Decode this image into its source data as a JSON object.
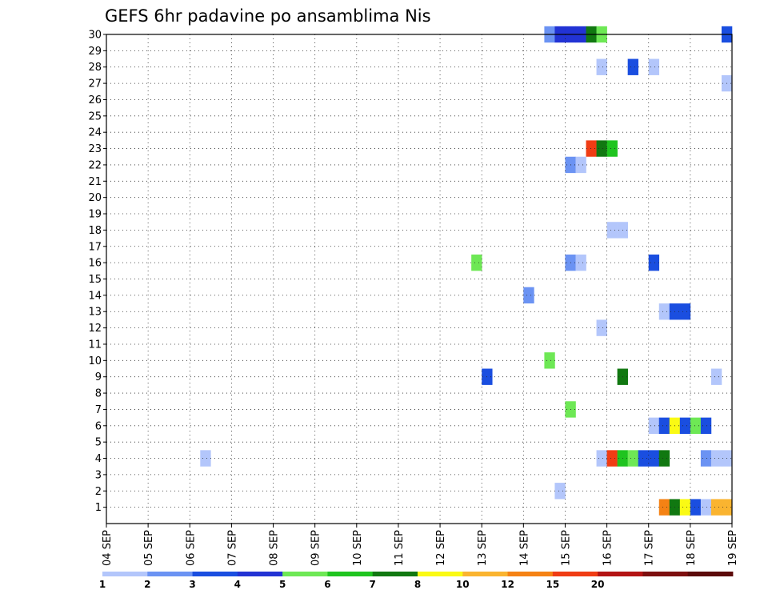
{
  "chart_data": {
    "type": "heatmap",
    "title": "GEFS 6hr padavine po ansamblima Nis",
    "xlabel": "",
    "ylabel": "",
    "x_tick_labels": [
      "04 SEP",
      "05 SEP",
      "06 SEP",
      "07 SEP",
      "08 SEP",
      "09 SEP",
      "10 SEP",
      "11 SEP",
      "12 SEP",
      "13 SEP",
      "14 SEP",
      "15 SEP",
      "16 SEP",
      "17 SEP",
      "18 SEP",
      "19 SEP"
    ],
    "x_unit": "6-hour step from 04 SEP 00Z",
    "xlim": [
      0,
      60
    ],
    "y_tick_labels": [
      "1",
      "2",
      "3",
      "4",
      "5",
      "6",
      "7",
      "8",
      "9",
      "10",
      "11",
      "12",
      "13",
      "14",
      "15",
      "16",
      "17",
      "18",
      "19",
      "20",
      "21",
      "22",
      "23",
      "24",
      "25",
      "26",
      "27",
      "28",
      "29",
      "30"
    ],
    "ylim": [
      0,
      30
    ],
    "grid": true,
    "colorbar": {
      "colors": [
        "#b3c6fb",
        "#6b93f3",
        "#1a4ee0",
        "#2233d4",
        "#6ee855",
        "#1fc41f",
        "#117811",
        "#fafa14",
        "#fab430",
        "#f58214",
        "#f03c14",
        "#b41414",
        "#7d0f0f",
        "#5c0a0a"
      ],
      "tick_labels": [
        "1",
        "2",
        "3",
        "4",
        "5",
        "6",
        "7",
        "8",
        "10",
        "12",
        "15",
        "20"
      ]
    },
    "cells": [
      {
        "x": 42,
        "y": 30,
        "c": 1
      },
      {
        "x": 43,
        "y": 30,
        "c": 3
      },
      {
        "x": 44,
        "y": 30,
        "c": 3
      },
      {
        "x": 45,
        "y": 30,
        "c": 3
      },
      {
        "x": 46,
        "y": 30,
        "c": 6
      },
      {
        "x": 47,
        "y": 30,
        "c": 4
      },
      {
        "x": 59,
        "y": 30,
        "c": 2
      },
      {
        "x": 47,
        "y": 28,
        "c": 0
      },
      {
        "x": 50,
        "y": 28,
        "c": 2
      },
      {
        "x": 52,
        "y": 28,
        "c": 0
      },
      {
        "x": 59,
        "y": 27,
        "c": 0
      },
      {
        "x": 46,
        "y": 23,
        "c": 10
      },
      {
        "x": 47,
        "y": 23,
        "c": 6
      },
      {
        "x": 48,
        "y": 23,
        "c": 5
      },
      {
        "x": 44,
        "y": 22,
        "c": 1
      },
      {
        "x": 45,
        "y": 22,
        "c": 0
      },
      {
        "x": 48,
        "y": 18,
        "c": 0
      },
      {
        "x": 49,
        "y": 18,
        "c": 0
      },
      {
        "x": 35,
        "y": 16,
        "c": 4
      },
      {
        "x": 44,
        "y": 16,
        "c": 1
      },
      {
        "x": 45,
        "y": 16,
        "c": 0
      },
      {
        "x": 52,
        "y": 16,
        "c": 2
      },
      {
        "x": 40,
        "y": 14,
        "c": 1
      },
      {
        "x": 53,
        "y": 13,
        "c": 0
      },
      {
        "x": 54,
        "y": 13,
        "c": 2
      },
      {
        "x": 55,
        "y": 13,
        "c": 2
      },
      {
        "x": 47,
        "y": 12,
        "c": 0
      },
      {
        "x": 42,
        "y": 10,
        "c": 4
      },
      {
        "x": 36,
        "y": 9,
        "c": 2
      },
      {
        "x": 49,
        "y": 9,
        "c": 6
      },
      {
        "x": 58,
        "y": 9,
        "c": 0
      },
      {
        "x": 44,
        "y": 7,
        "c": 4
      },
      {
        "x": 52,
        "y": 6,
        "c": 0
      },
      {
        "x": 53,
        "y": 6,
        "c": 2
      },
      {
        "x": 54,
        "y": 6,
        "c": 7
      },
      {
        "x": 55,
        "y": 6,
        "c": 2
      },
      {
        "x": 56,
        "y": 6,
        "c": 4
      },
      {
        "x": 57,
        "y": 6,
        "c": 2
      },
      {
        "x": 9,
        "y": 4,
        "c": 0
      },
      {
        "x": 47,
        "y": 4,
        "c": 0
      },
      {
        "x": 48,
        "y": 4,
        "c": 10
      },
      {
        "x": 49,
        "y": 4,
        "c": 5
      },
      {
        "x": 50,
        "y": 4,
        "c": 4
      },
      {
        "x": 51,
        "y": 4,
        "c": 2
      },
      {
        "x": 52,
        "y": 4,
        "c": 2
      },
      {
        "x": 53,
        "y": 4,
        "c": 6
      },
      {
        "x": 57,
        "y": 4,
        "c": 1
      },
      {
        "x": 58,
        "y": 4,
        "c": 0
      },
      {
        "x": 59,
        "y": 4,
        "c": 0
      },
      {
        "x": 43,
        "y": 2,
        "c": 0
      },
      {
        "x": 53,
        "y": 1,
        "c": 9
      },
      {
        "x": 54,
        "y": 1,
        "c": 6
      },
      {
        "x": 55,
        "y": 1,
        "c": 7
      },
      {
        "x": 56,
        "y": 1,
        "c": 2
      },
      {
        "x": 57,
        "y": 1,
        "c": 0
      },
      {
        "x": 58,
        "y": 1,
        "c": 8
      },
      {
        "x": 59,
        "y": 1,
        "c": 8
      }
    ]
  }
}
